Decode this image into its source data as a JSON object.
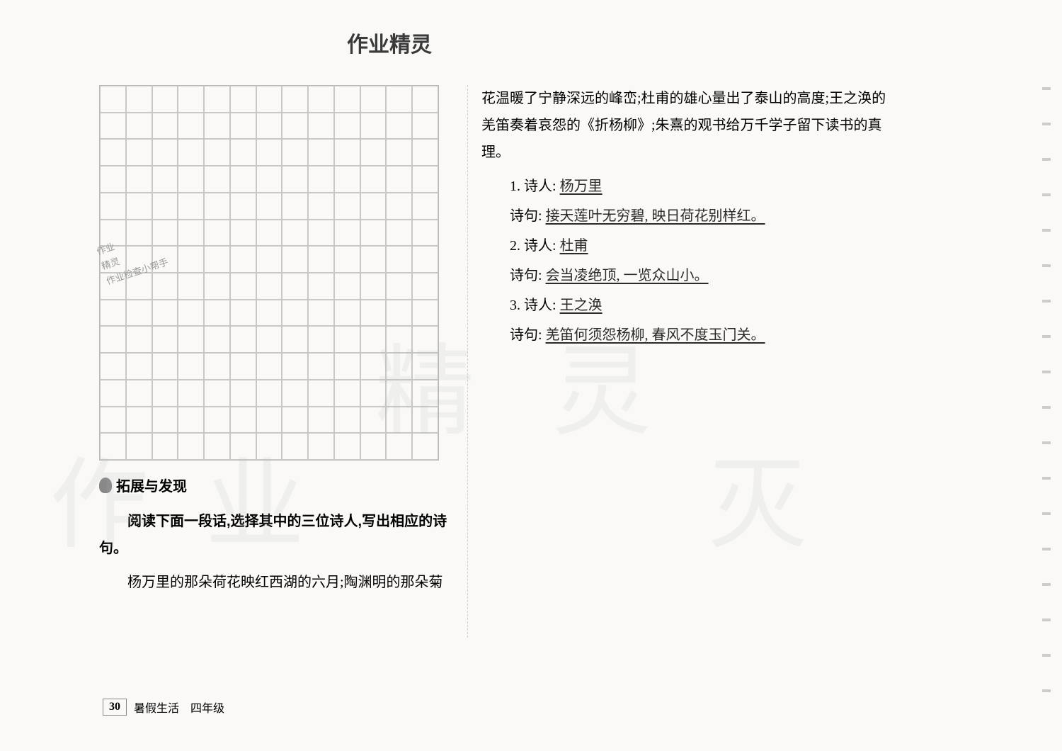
{
  "header": {
    "title": "作业精灵"
  },
  "stamp": {
    "line1": "作业",
    "line2": "精灵",
    "line3": "作业检查小帮手"
  },
  "grid": {
    "cols": 13,
    "rows": 14,
    "border_color": "#c8c8c8"
  },
  "section": {
    "title": "拓展与发现",
    "instruction": "阅读下面一段话,选择其中的三位诗人,写出相应的诗句。",
    "passage_left": "杨万里的那朵荷花映红西湖的六月;陶渊明的那朵菊",
    "passage_right": "花温暖了宁静深远的峰峦;杜甫的雄心量出了泰山的高度;王之涣的羌笛奏着哀怨的《折杨柳》;朱熹的观书给万千学子留下读书的真理。"
  },
  "answers": [
    {
      "idx": "1.",
      "poet_label": "诗人:",
      "poet_value": "杨万里",
      "verse_label": "诗句:",
      "verse_value": "接天莲叶无穷碧, 映日荷花别样红。"
    },
    {
      "idx": "2.",
      "poet_label": "诗人:",
      "poet_value": "杜甫",
      "verse_label": "诗句:",
      "verse_value": "会当凌绝顶, 一览众山小。"
    },
    {
      "idx": "3.",
      "poet_label": "诗人:",
      "poet_value": "王之涣",
      "verse_label": "诗句:",
      "verse_value": "羌笛何须怨杨柳, 春风不度玉门关。"
    }
  ],
  "watermark": {
    "c1": "作",
    "c2": "业",
    "c3": "精",
    "c4": "灵",
    "c5": "灭"
  },
  "footer": {
    "page_num": "30",
    "label": "暑假生活　四年级"
  }
}
